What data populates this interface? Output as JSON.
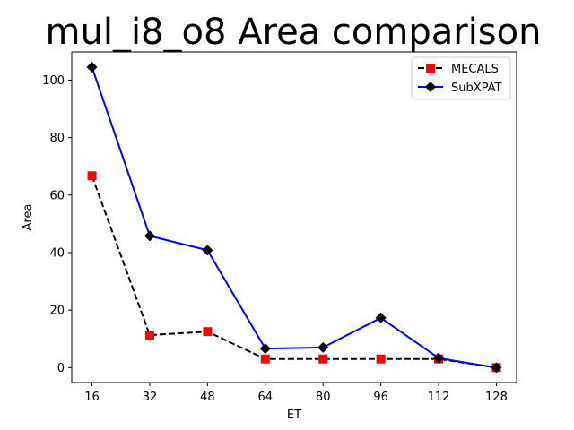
{
  "chart_data": {
    "type": "line",
    "title": "mul_i8_o8 Area comparison",
    "xlabel": "ET",
    "ylabel": "Area",
    "x": [
      16,
      32,
      48,
      64,
      80,
      96,
      112,
      128
    ],
    "xticks": [
      16,
      32,
      48,
      64,
      80,
      96,
      112,
      128
    ],
    "yticks": [
      0,
      20,
      40,
      60,
      80,
      100
    ],
    "xlim": [
      10.4,
      133.6
    ],
    "ylim": [
      -5.2,
      109.8
    ],
    "grid": false,
    "legend_position": "upper right",
    "series": [
      {
        "name": "MECALS",
        "values": [
          66.7,
          11.3,
          12.5,
          3.0,
          3.0,
          3.0,
          3.0,
          0.0
        ],
        "line_color": "#000000",
        "marker_color": "#ff0000",
        "line_style": "dashed",
        "marker": "square"
      },
      {
        "name": "SubXPAT",
        "values": [
          104.5,
          45.8,
          40.8,
          6.6,
          7.0,
          17.3,
          3.3,
          0.0
        ],
        "line_color": "#0000ff",
        "marker_color": "#000000",
        "line_style": "solid",
        "marker": "diamond"
      }
    ]
  }
}
